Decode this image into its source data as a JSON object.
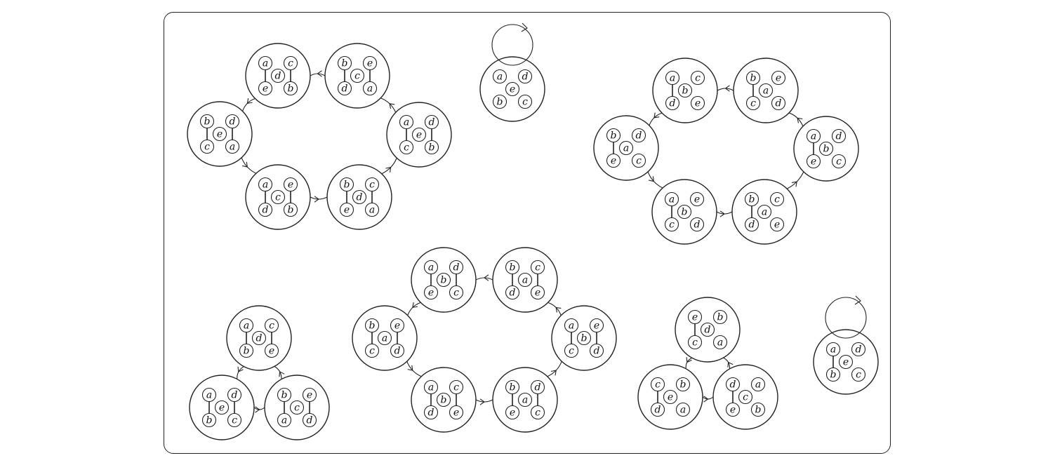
{
  "diagram": {
    "nodes": [
      {
        "id": "C1-1",
        "tl": "a",
        "tr": "c",
        "c": "d",
        "bl": "e",
        "br": "b",
        "edges": [
          "left",
          "right"
        ]
      },
      {
        "id": "C1-2",
        "tl": "b",
        "tr": "e",
        "c": "c",
        "bl": "d",
        "br": "a",
        "edges": [
          "left",
          "right"
        ]
      },
      {
        "id": "C1-3",
        "tl": "a",
        "tr": "d",
        "c": "e",
        "bl": "c",
        "br": "b",
        "edges": [
          "left",
          "right"
        ]
      },
      {
        "id": "C1-4",
        "tl": "b",
        "tr": "c",
        "c": "d",
        "bl": "e",
        "br": "a",
        "edges": [
          "left",
          "right"
        ]
      },
      {
        "id": "C1-5",
        "tl": "a",
        "tr": "e",
        "c": "c",
        "bl": "d",
        "br": "b",
        "edges": [
          "left",
          "right"
        ]
      },
      {
        "id": "C1-6",
        "tl": "b",
        "tr": "d",
        "c": "e",
        "bl": "c",
        "br": "a",
        "edges": [
          "left",
          "right"
        ]
      },
      {
        "id": "F1",
        "tl": "a",
        "tr": "d",
        "c": "e",
        "bl": "b",
        "br": "c",
        "edges": []
      },
      {
        "id": "C2-1",
        "tl": "a",
        "tr": "c",
        "c": "b",
        "bl": "d",
        "br": "e",
        "edges": [
          "left"
        ]
      },
      {
        "id": "C2-2",
        "tl": "b",
        "tr": "e",
        "c": "a",
        "bl": "c",
        "br": "d",
        "edges": [
          "left"
        ]
      },
      {
        "id": "C2-3",
        "tl": "a",
        "tr": "d",
        "c": "b",
        "bl": "e",
        "br": "c",
        "edges": [
          "left"
        ]
      },
      {
        "id": "C2-4",
        "tl": "b",
        "tr": "c",
        "c": "a",
        "bl": "d",
        "br": "e",
        "edges": [
          "left"
        ]
      },
      {
        "id": "C2-5",
        "tl": "a",
        "tr": "e",
        "c": "b",
        "bl": "c",
        "br": "d",
        "edges": [
          "left"
        ]
      },
      {
        "id": "C2-6",
        "tl": "b",
        "tr": "d",
        "c": "a",
        "bl": "e",
        "br": "c",
        "edges": [
          "left"
        ]
      },
      {
        "id": "T1-1",
        "tl": "a",
        "tr": "c",
        "c": "d",
        "bl": "b",
        "br": "e",
        "edges": [
          "left",
          "right"
        ]
      },
      {
        "id": "T1-2",
        "tl": "b",
        "tr": "e",
        "c": "c",
        "bl": "a",
        "br": "d",
        "edges": [
          "left",
          "right"
        ]
      },
      {
        "id": "T1-3",
        "tl": "a",
        "tr": "d",
        "c": "e",
        "bl": "b",
        "br": "c",
        "edges": [
          "left",
          "right"
        ]
      },
      {
        "id": "C3-1",
        "tl": "a",
        "tr": "d",
        "c": "b",
        "bl": "e",
        "br": "c",
        "edges": [
          "left",
          "right"
        ]
      },
      {
        "id": "C3-2",
        "tl": "b",
        "tr": "c",
        "c": "a",
        "bl": "d",
        "br": "e",
        "edges": [
          "left",
          "right"
        ]
      },
      {
        "id": "C3-3",
        "tl": "a",
        "tr": "e",
        "c": "b",
        "bl": "c",
        "br": "d",
        "edges": [
          "left",
          "right"
        ]
      },
      {
        "id": "C3-4",
        "tl": "b",
        "tr": "d",
        "c": "a",
        "bl": "e",
        "br": "c",
        "edges": [
          "left",
          "right"
        ]
      },
      {
        "id": "C3-5",
        "tl": "a",
        "tr": "c",
        "c": "b",
        "bl": "d",
        "br": "e",
        "edges": [
          "left",
          "right"
        ]
      },
      {
        "id": "C3-6",
        "tl": "b",
        "tr": "e",
        "c": "a",
        "bl": "c",
        "br": "d",
        "edges": [
          "left",
          "right"
        ]
      },
      {
        "id": "T2-1",
        "tl": "e",
        "tr": "b",
        "c": "d",
        "bl": "c",
        "br": "a",
        "edges": [
          "left"
        ]
      },
      {
        "id": "T2-2",
        "tl": "d",
        "tr": "a",
        "c": "c",
        "bl": "e",
        "br": "b",
        "edges": [
          "left"
        ]
      },
      {
        "id": "T2-3",
        "tl": "c",
        "tr": "b",
        "c": "e",
        "bl": "d",
        "br": "a",
        "edges": [
          "left"
        ]
      },
      {
        "id": "F2",
        "tl": "a",
        "tr": "d",
        "c": "e",
        "bl": "b",
        "br": "c",
        "edges": [
          "left"
        ]
      }
    ],
    "cycles": [
      {
        "members": [
          "C1-1",
          "C1-6",
          "C1-5",
          "C1-4",
          "C1-3",
          "C1-2"
        ]
      },
      {
        "members": [
          "C2-1",
          "C2-6",
          "C2-5",
          "C2-4",
          "C2-3",
          "C2-2"
        ]
      },
      {
        "members": [
          "C3-1",
          "C3-6",
          "C3-5",
          "C3-4",
          "C3-3",
          "C3-2"
        ]
      },
      {
        "members": [
          "T1-1",
          "T1-3",
          "T1-2"
        ]
      },
      {
        "members": [
          "T2-1",
          "T2-3",
          "T2-2"
        ]
      }
    ],
    "self_loops": [
      {
        "node": "F1"
      },
      {
        "node": "F2"
      }
    ]
  }
}
